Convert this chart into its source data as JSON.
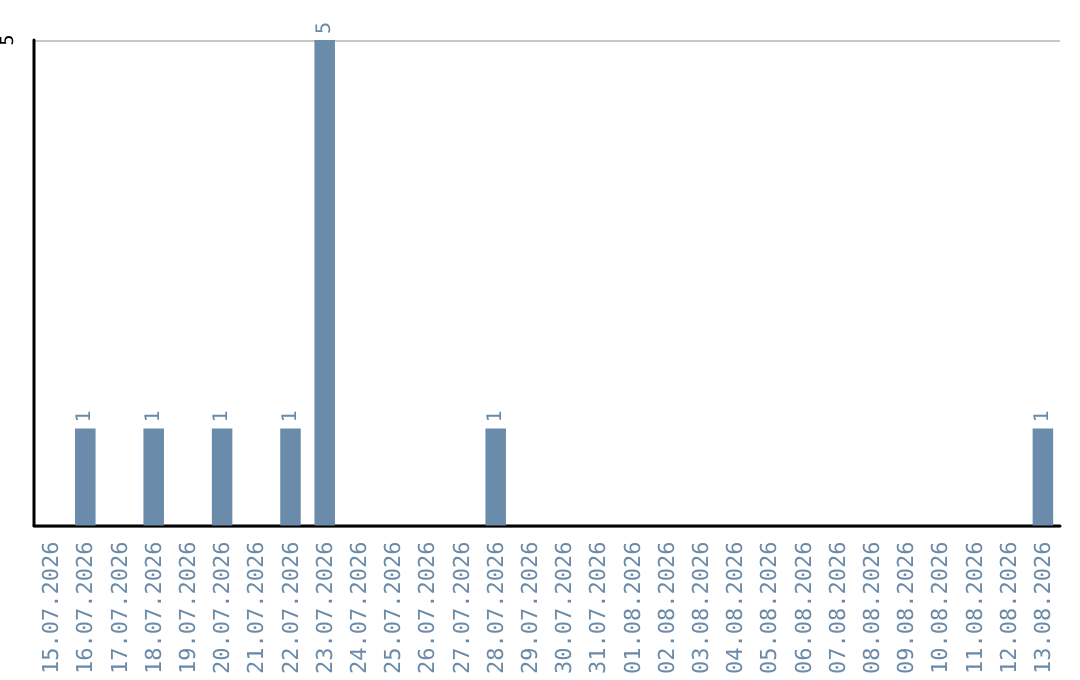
{
  "chart_data": {
    "type": "bar",
    "categories": [
      "15.07.2026",
      "16.07.2026",
      "17.07.2026",
      "18.07.2026",
      "19.07.2026",
      "20.07.2026",
      "21.07.2026",
      "22.07.2026",
      "23.07.2026",
      "24.07.2026",
      "25.07.2026",
      "26.07.2026",
      "27.07.2026",
      "28.07.2026",
      "29.07.2026",
      "30.07.2026",
      "31.07.2026",
      "01.08.2026",
      "02.08.2026",
      "03.08.2026",
      "04.08.2026",
      "05.08.2026",
      "06.08.2026",
      "07.08.2026",
      "08.08.2026",
      "09.08.2026",
      "10.08.2026",
      "11.08.2026",
      "12.08.2026",
      "13.08.2026"
    ],
    "values": [
      0,
      1,
      0,
      1,
      0,
      1,
      0,
      1,
      5,
      0,
      0,
      0,
      0,
      1,
      0,
      0,
      0,
      0,
      0,
      0,
      0,
      0,
      0,
      0,
      0,
      0,
      0,
      0,
      0,
      1
    ],
    "value_labels": [
      null,
      "1",
      null,
      "1",
      null,
      "1",
      null,
      "1",
      "5",
      null,
      null,
      null,
      null,
      "1",
      null,
      null,
      null,
      null,
      null,
      null,
      null,
      null,
      null,
      null,
      null,
      null,
      null,
      null,
      null,
      "1"
    ],
    "color": "#6a8caa",
    "ylim": [
      0,
      5
    ],
    "yticks": [
      {
        "value": 0,
        "label": null
      },
      5
    ],
    "grid": "y"
  }
}
